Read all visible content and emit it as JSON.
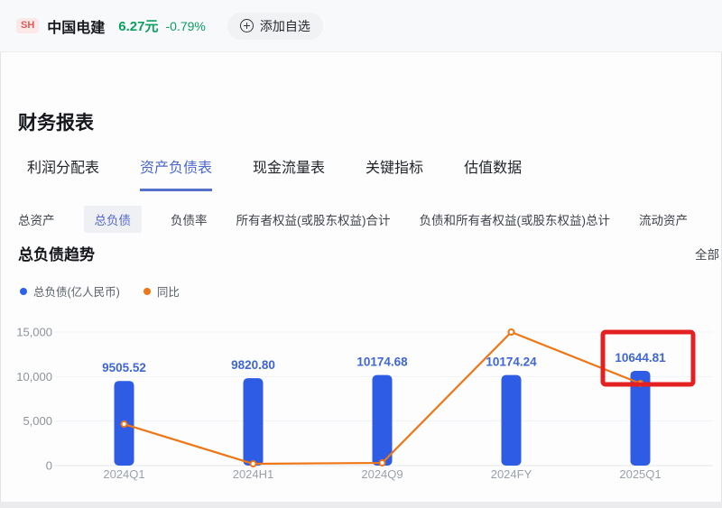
{
  "header": {
    "exchange": "SH",
    "name": "中国电建",
    "price": "6.27元",
    "change": "-0.79%",
    "add_button": "添加自选"
  },
  "page_title": "财务报表",
  "tabs": [
    {
      "label": "利润分配表",
      "active": false
    },
    {
      "label": "资产负债表",
      "active": true
    },
    {
      "label": "现金流量表",
      "active": false
    },
    {
      "label": "关键指标",
      "active": false
    },
    {
      "label": "估值数据",
      "active": false
    }
  ],
  "subtabs": [
    {
      "label": "总资产",
      "active": false
    },
    {
      "label": "总负债",
      "active": true
    },
    {
      "label": "负债率",
      "active": false
    },
    {
      "label": "所有者权益(或股东权益)合计",
      "active": false
    },
    {
      "label": "负债和所有者权益(或股东权益)总计",
      "active": false
    },
    {
      "label": "流动资产",
      "active": false
    }
  ],
  "chart_header": {
    "title": "总负债趋势",
    "filter": "全部"
  },
  "legend": [
    {
      "label": "总负债(亿人民币)",
      "color": "#2e62e9"
    },
    {
      "label": "同比",
      "color": "#ee7615"
    }
  ],
  "chart_data": {
    "type": "bar",
    "title": "总负债趋势",
    "categories": [
      "2024Q1",
      "2024H1",
      "2024Q9",
      "2024FY",
      "2025Q1"
    ],
    "series": [
      {
        "name": "总负债(亿人民币)",
        "type": "bar",
        "color": "#2f5ce5",
        "values": [
          9505.52,
          9820.8,
          10174.68,
          10174.24,
          10644.81
        ],
        "labels": [
          "9505.52",
          "9820.80",
          "10174.68",
          "10174.24",
          "10644.81"
        ]
      },
      {
        "name": "同比",
        "type": "line",
        "color": "#ee7615",
        "axis": "secondary-hidden",
        "values_left_axis_estimate": [
          4660,
          200,
          300,
          15000,
          9220
        ]
      }
    ],
    "ylim": [
      0,
      15000
    ],
    "yticks": [
      {
        "value": 15000,
        "label": "15,000"
      },
      {
        "value": 10000,
        "label": "10,000"
      },
      {
        "value": 5000,
        "label": "5,000"
      },
      {
        "value": 0,
        "label": "0"
      }
    ],
    "grid": true,
    "legend_position": "top-left",
    "annotation": {
      "type": "red-box",
      "target": "2025Q1",
      "color": "#e32121"
    }
  }
}
